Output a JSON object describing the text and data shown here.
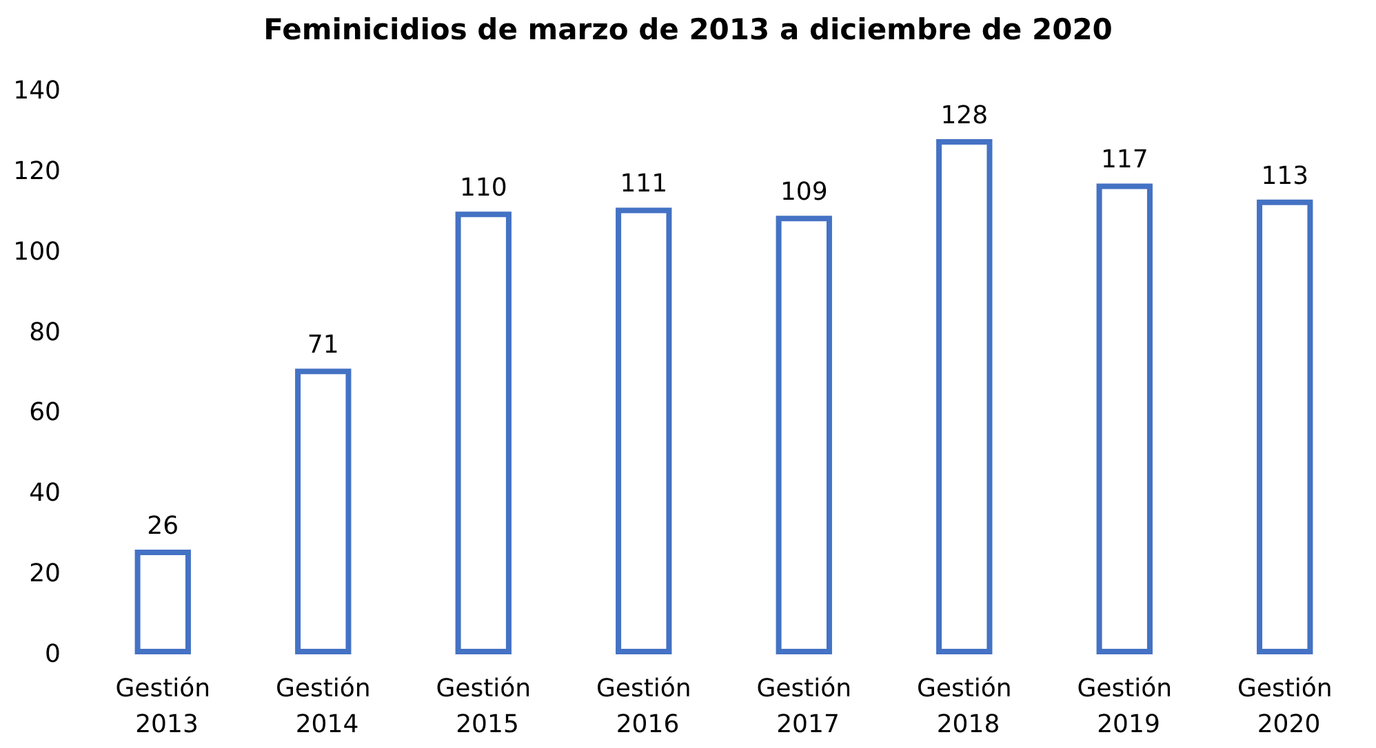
{
  "chart_data": {
    "type": "bar",
    "title": "Feminicidios de marzo de 2013 a diciembre de 2020",
    "categories": [
      "Gestión 2013",
      "Gestión 2014",
      "Gestión 2015",
      "Gestión 2016",
      "Gestión 2017",
      "Gestión 2018",
      "Gestión 2019",
      "Gestión 2020"
    ],
    "values": [
      26,
      71,
      110,
      111,
      109,
      128,
      117,
      113
    ],
    "color": "#4472c4",
    "ylim": [
      0,
      140
    ],
    "yticks": [
      0,
      20,
      40,
      60,
      80,
      100,
      120,
      140
    ],
    "grid": false,
    "data_labels": true
  }
}
